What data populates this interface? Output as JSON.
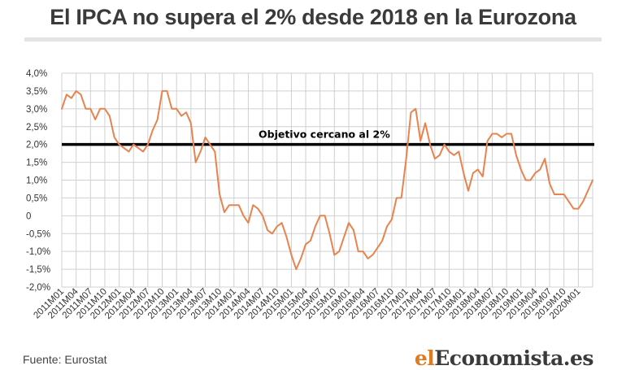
{
  "header": {
    "title": "El IPCA no supera el 2% desde 2018 en la Eurozona"
  },
  "footer": {
    "source": "Fuente: Eurostat",
    "brand_el": "el",
    "brand_rest": "Economista.es"
  },
  "colors": {
    "line": "#e8834e",
    "target": "#000000",
    "grid": "#d0d0d0",
    "axis_text": "#333333"
  },
  "chart_data": {
    "type": "line",
    "title": "El IPCA no supera el 2% desde 2018 en la Eurozona",
    "xlabel": "",
    "ylabel": "",
    "ylim": [
      -2.0,
      4.0
    ],
    "yticks": [
      4.0,
      3.5,
      3.0,
      2.5,
      2.0,
      1.5,
      1.0,
      0.5,
      0,
      -0.5,
      -1.0,
      -1.5,
      -2.0
    ],
    "ytick_labels": [
      "4,0%",
      "3,5%",
      "3,0%",
      "2,5%",
      "2,0%",
      "1,5%",
      "1,0%",
      "0,5%",
      "0",
      "-0,5%",
      "-1,0%",
      "-1,5%",
      "-2,0%"
    ],
    "xtick_labels": [
      "2011M01",
      "2011M04",
      "2011M07",
      "2011M10",
      "2012M01",
      "2012M04",
      "2012M07",
      "2012M10",
      "2013M01",
      "2013M04",
      "2013M07",
      "2013M10",
      "2014M01",
      "2014M04",
      "2014M07",
      "2014M10",
      "2015M01",
      "2015M04",
      "2015M07",
      "2015M10",
      "2016M01",
      "2016M04",
      "2016M07",
      "2016M10",
      "2017M01",
      "2017M04",
      "2017M07",
      "2017M10",
      "2018M01",
      "2018M04",
      "2018M07",
      "2018M10",
      "2019M01",
      "2019M04",
      "2019M07",
      "2019M10",
      "2020M01"
    ],
    "grid": true,
    "annotation": {
      "text": "Objetivo cercano al 2%",
      "value": 2.0
    },
    "series": [
      {
        "values": [
          3.0,
          3.4,
          3.3,
          3.5,
          3.4,
          3.0,
          3.0,
          2.7,
          3.0,
          3.0,
          2.8,
          2.2,
          2.0,
          1.9,
          1.8,
          2.0,
          1.9,
          1.8,
          2.0,
          2.4,
          2.7,
          3.5,
          3.5,
          3.0,
          3.0,
          2.8,
          2.9,
          2.6,
          1.5,
          1.8,
          2.2,
          2.0,
          1.8,
          0.6,
          0.1,
          0.3,
          0.3,
          0.3,
          0.0,
          -0.2,
          0.3,
          0.2,
          0.0,
          -0.4,
          -0.5,
          -0.3,
          -0.2,
          -0.6,
          -1.1,
          -1.5,
          -1.2,
          -0.8,
          -0.7,
          -0.3,
          0.0,
          0.0,
          -0.5,
          -1.1,
          -1.0,
          -0.6,
          -0.2,
          -0.4,
          -1.0,
          -1.0,
          -1.2,
          -1.1,
          -0.9,
          -0.7,
          -0.3,
          -0.1,
          0.5,
          0.5,
          1.6,
          2.9,
          3.0,
          2.1,
          2.6,
          2.0,
          1.6,
          1.7,
          2.0,
          1.8,
          1.7,
          1.8,
          1.2,
          0.7,
          1.2,
          1.3,
          1.1,
          2.1,
          2.3,
          2.3,
          2.2,
          2.3,
          2.3,
          1.7,
          1.3,
          1.0,
          1.0,
          1.2,
          1.3,
          1.6,
          0.9,
          0.6,
          0.6,
          0.6,
          0.4,
          0.2,
          0.2,
          0.4,
          0.7,
          1.0
        ]
      }
    ]
  }
}
